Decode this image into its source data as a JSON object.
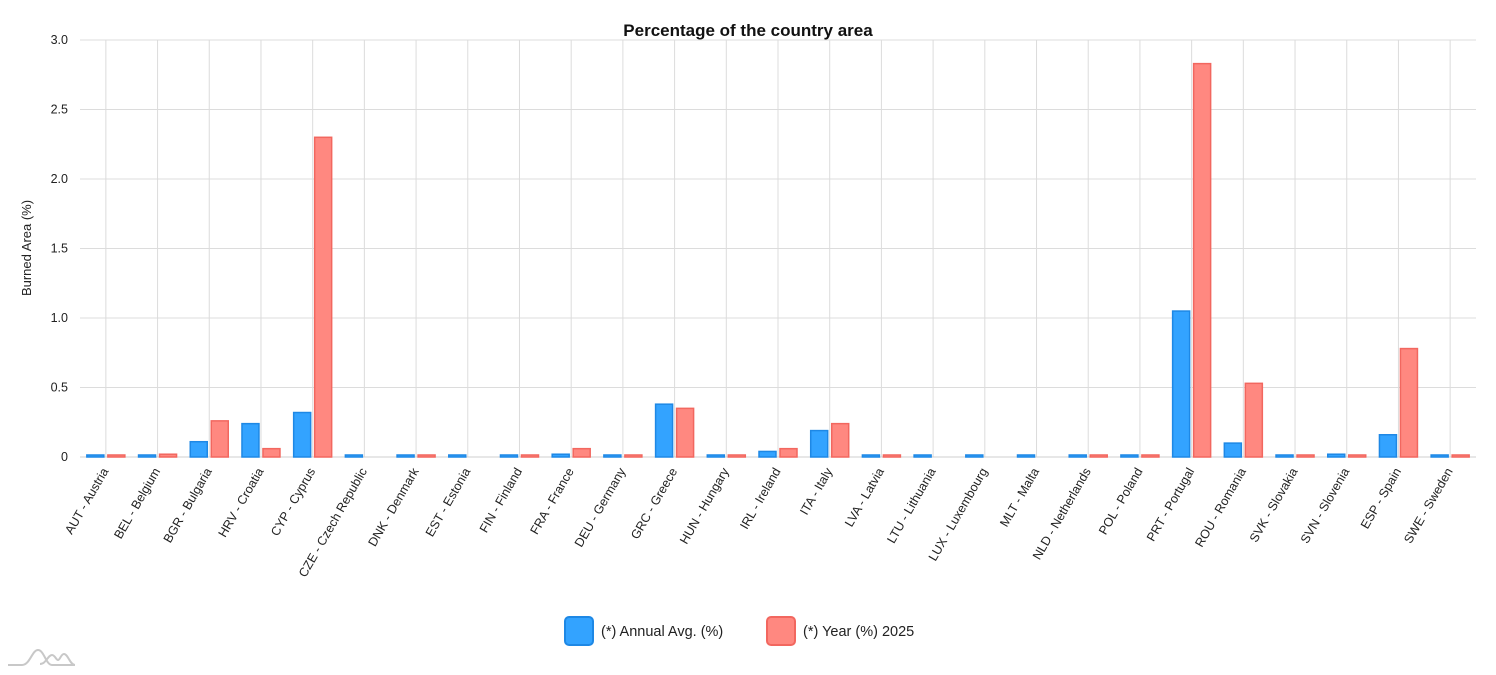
{
  "chart_data": {
    "type": "bar",
    "title": "Percentage of the country area",
    "xlabel": "",
    "ylabel": "Burned Area (%)",
    "ylim": [
      0,
      3.0
    ],
    "yticks": [
      "0",
      "0.5",
      "1.0",
      "1.5",
      "2.0",
      "2.5",
      "3.0"
    ],
    "grid": true,
    "legend_position": "bottom-center",
    "categories": [
      "AUT - Austria",
      "BEL - Belgium",
      "BGR - Bulgaria",
      "HRV - Croatia",
      "CYP - Cyprus",
      "CZE - Czech Republic",
      "DNK - Denmark",
      "EST - Estonia",
      "FIN - Finland",
      "FRA - France",
      "DEU - Germany",
      "GRC - Greece",
      "HUN - Hungary",
      "IRL - Ireland",
      "ITA - Italy",
      "LVA - Latvia",
      "LTU - Lithuania",
      "LUX - Luxembourg",
      "MLT - Malta",
      "NLD - Netherlands",
      "POL - Poland",
      "PRT - Portugal",
      "ROU - Romania",
      "SVK - Slovakia",
      "SVN - Slovenia",
      "ESP - Spain",
      "SWE - Sweden"
    ],
    "series": [
      {
        "name": "(*) Annual Avg. (%)",
        "color": "#33a3ff",
        "stroke": "#1e88e5",
        "values": [
          0.0,
          0.01,
          0.11,
          0.24,
          0.32,
          0.0,
          0.0,
          0.0,
          0.0,
          0.02,
          0.0,
          0.38,
          0.01,
          0.04,
          0.19,
          0.0,
          0.0,
          0.0,
          0.01,
          0.0,
          0.0,
          1.05,
          0.1,
          0.0,
          0.02,
          0.16,
          0.0
        ]
      },
      {
        "name": "(*) Year (%) 2025",
        "color": "#ff8880",
        "stroke": "#f2675f",
        "values": [
          0.01,
          0.02,
          0.26,
          0.06,
          2.3,
          null,
          0.01,
          null,
          0.0,
          0.06,
          0.01,
          0.35,
          0.01,
          0.06,
          0.24,
          0.0,
          null,
          null,
          null,
          0.0,
          0.0,
          2.83,
          0.53,
          0.01,
          0.01,
          0.78,
          0.0
        ]
      }
    ]
  }
}
